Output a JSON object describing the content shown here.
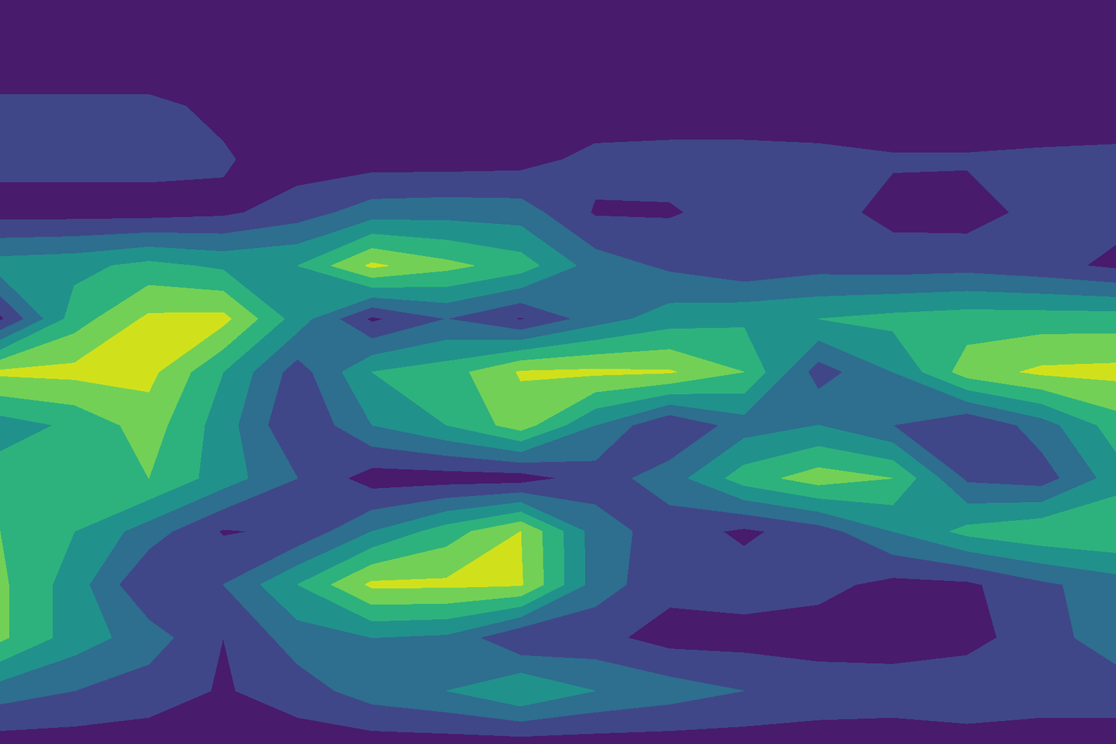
{
  "chart_data": {
    "type": "contourf",
    "color": "viridis",
    "tick_labels": false,
    "levels": [
      0,
      1,
      2,
      3,
      4,
      5,
      6,
      7
    ],
    "z": [
      [
        0.3,
        0.3,
        0.3,
        0.3,
        0.3,
        0.3,
        0.3,
        0.3,
        0.3,
        0.3,
        0.3,
        0.3,
        0.3,
        0.3,
        0.3,
        0.3
      ],
      [
        0.3,
        0.3,
        0.3,
        0.3,
        0.3,
        0.3,
        0.3,
        0.3,
        0.3,
        0.3,
        0.3,
        0.3,
        0.3,
        0.3,
        0.3,
        0.3
      ],
      [
        1.2,
        1.2,
        1.2,
        0.8,
        0.3,
        0.3,
        0.3,
        0.3,
        0.3,
        0.3,
        0.3,
        0.3,
        0.3,
        0.3,
        0.3,
        0.5
      ],
      [
        1.3,
        1.3,
        1.3,
        1.1,
        0.5,
        0.5,
        0.5,
        0.6,
        1.3,
        1.4,
        1.4,
        1.3,
        1.1,
        1.1,
        1.2,
        1.2
      ],
      [
        0.6,
        0.6,
        0.6,
        0.8,
        1.5,
        2.5,
        2.6,
        2.5,
        0.9,
        0.9,
        1.4,
        1.4,
        0.7,
        0.6,
        1.3,
        1.3
      ],
      [
        3.5,
        3.7,
        4.3,
        3.8,
        4.0,
        6.2,
        5.3,
        4.5,
        2.5,
        1.8,
        1.2,
        1.6,
        1.5,
        1.6,
        1.3,
        0.8
      ],
      [
        0.8,
        4.5,
        6.2,
        6.3,
        3.5,
        0.8,
        2.0,
        0.9,
        2.5,
        3.5,
        3.8,
        4.0,
        4.3,
        4.5,
        4.5,
        4.5
      ],
      [
        6.2,
        6.3,
        6.3,
        4.0,
        1.5,
        4.0,
        4.5,
        6.1,
        6.2,
        6.1,
        5.0,
        1.5,
        3.0,
        5.5,
        6.2,
        6.3
      ],
      [
        3.5,
        4.2,
        5.5,
        3.5,
        1.0,
        3.0,
        4.0,
        5.5,
        3.0,
        1.0,
        2.5,
        3.0,
        2.0,
        1.0,
        2.5,
        4.5
      ],
      [
        4.5,
        4.5,
        5.0,
        3.5,
        2.0,
        0.5,
        0.5,
        0.5,
        1.5,
        2.5,
        4.5,
        5.5,
        5.0,
        1.8,
        1.5,
        3.5
      ],
      [
        5.0,
        4.0,
        2.5,
        0.9,
        1.2,
        3.0,
        4.5,
        6.0,
        2.5,
        1.5,
        0.8,
        1.5,
        3.0,
        4.3,
        4.8,
        5.0
      ],
      [
        5.2,
        3.5,
        1.0,
        2.0,
        4.0,
        6.2,
        6.2,
        6.1,
        2.5,
        1.3,
        1.5,
        1.3,
        0.7,
        0.8,
        1.8,
        2.5
      ],
      [
        5.2,
        3.5,
        2.5,
        1.0,
        2.5,
        3.0,
        2.8,
        1.0,
        1.3,
        0.6,
        0.6,
        0.5,
        0.5,
        0.6,
        1.6,
        2.5
      ],
      [
        2.5,
        2.0,
        1.5,
        0.9,
        1.5,
        2.5,
        3.0,
        4.0,
        3.0,
        2.5,
        2.0,
        1.6,
        1.5,
        1.8,
        1.5,
        1.5
      ],
      [
        0.5,
        0.5,
        0.5,
        0.5,
        0.5,
        0.5,
        0.5,
        0.5,
        0.5,
        0.5,
        0.5,
        0.5,
        0.5,
        0.5,
        0.5,
        0.5
      ]
    ]
  }
}
